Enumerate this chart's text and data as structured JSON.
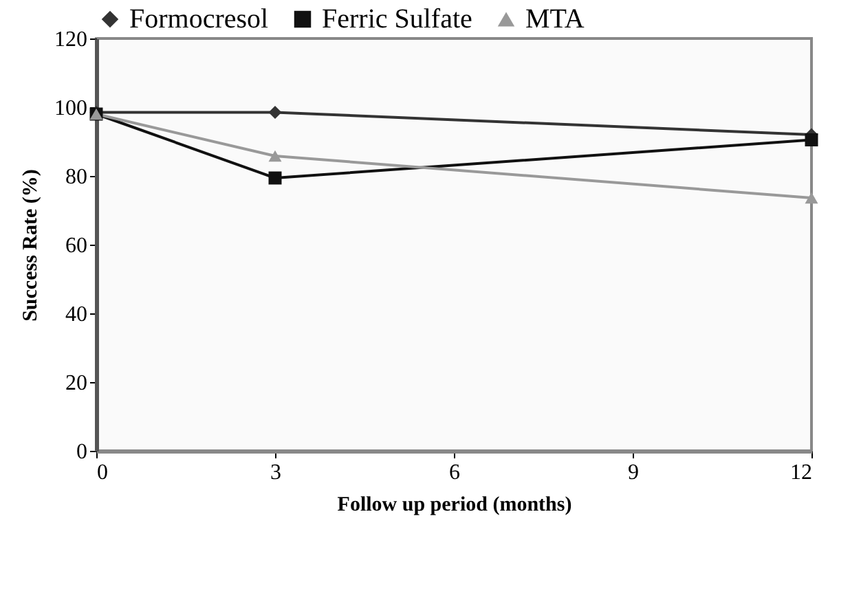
{
  "chart_data": {
    "type": "line",
    "xlabel": "Follow up period (months)",
    "ylabel": "Success Rate (%)",
    "x": [
      0,
      3,
      12
    ],
    "series": [
      {
        "name": "Formocresol",
        "color": "#333333",
        "marker": "diamond",
        "values": [
          98.5,
          98.5,
          92
        ]
      },
      {
        "name": "Ferric Sulfate",
        "color": "#111111",
        "marker": "square",
        "values": [
          98,
          79.4,
          90.5
        ]
      },
      {
        "name": "MTA",
        "color": "#999999",
        "marker": "triangle",
        "values": [
          98,
          85.8,
          73.6
        ]
      }
    ],
    "xlim": [
      0,
      12
    ],
    "xticks": [
      0,
      3,
      6,
      9,
      12
    ],
    "ylim": [
      0,
      120
    ],
    "yticks": [
      0,
      20,
      40,
      60,
      80,
      100,
      120
    ],
    "grid": false,
    "legend": "top",
    "line_style": "solid"
  }
}
